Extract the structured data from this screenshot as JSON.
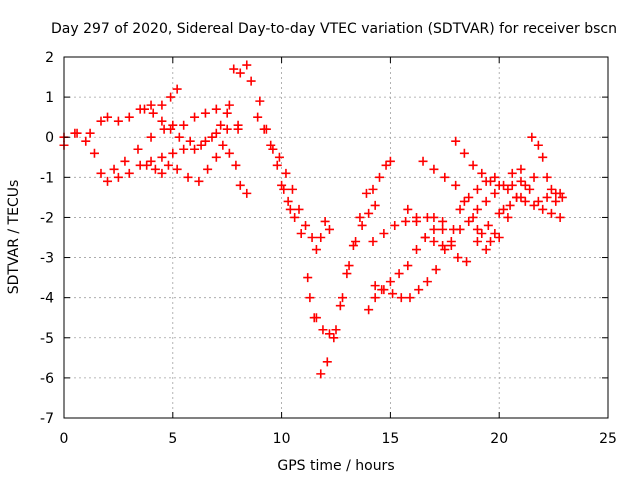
{
  "chart_data": {
    "type": "scatter",
    "title": "Day 297 of 2020, Sidereal Day-to-day VTEC variation (SDTVAR) for receiver bscn",
    "xlabel": "GPS time / hours",
    "ylabel": "SDTVAR / TECUs",
    "xlim": [
      0,
      25
    ],
    "ylim": [
      -7,
      2
    ],
    "xticks": [
      0,
      5,
      10,
      15,
      20,
      25
    ],
    "yticks": [
      -7,
      -6,
      -5,
      -4,
      -3,
      -2,
      -1,
      0,
      1,
      2
    ],
    "grid": true,
    "marker": "plus",
    "color": "#ff0000",
    "series": [
      {
        "x": [
          0.0,
          0.6,
          1.2,
          1.7,
          2.0,
          2.5,
          3.0,
          3.5,
          4.0,
          4.5,
          4.9,
          5.2
        ],
        "y": [
          -0.2,
          0.1,
          0.1,
          0.4,
          0.5,
          0.4,
          0.5,
          0.7,
          0.8,
          0.8,
          1.0,
          1.2
        ]
      },
      {
        "x": [
          0.0,
          0.5,
          1.0,
          1.4,
          1.7,
          2.0,
          2.3,
          2.8,
          3.4,
          4.0,
          4.6,
          5.0,
          5.5,
          6.0,
          6.5,
          7.0,
          7.5,
          8.0
        ],
        "y": [
          0.0,
          0.1,
          -0.1,
          -0.4,
          -0.9,
          -1.1,
          -0.8,
          -0.6,
          -0.3,
          0.0,
          0.2,
          0.3,
          0.3,
          0.5,
          0.6,
          0.7,
          0.6,
          0.2
        ]
      },
      {
        "x": [
          2.5,
          3.0,
          3.5,
          4.0,
          4.5,
          5.0,
          5.5,
          6.0,
          6.5,
          7.0,
          7.5,
          8.0
        ],
        "y": [
          -1.0,
          -0.9,
          -0.7,
          -0.6,
          -0.5,
          -0.4,
          -0.3,
          -0.3,
          -0.1,
          0.1,
          0.2,
          0.3
        ]
      },
      {
        "x": [
          3.8,
          4.2,
          4.5,
          4.8,
          5.2,
          5.7,
          6.2,
          6.6,
          7.0,
          7.3,
          7.6,
          7.9,
          8.1,
          8.4
        ],
        "y": [
          -0.7,
          -0.8,
          -0.9,
          -0.7,
          -0.8,
          -1.0,
          -1.1,
          -0.8,
          -0.5,
          -0.2,
          -0.4,
          -0.7,
          -1.2,
          -1.4
        ]
      },
      {
        "x": [
          3.7,
          4.1,
          4.5,
          4.9,
          5.3,
          5.8,
          6.3,
          6.8,
          7.2,
          7.6
        ],
        "y": [
          0.7,
          0.6,
          0.4,
          0.2,
          0.0,
          -0.1,
          -0.2,
          0.0,
          0.3,
          0.8
        ]
      },
      {
        "x": [
          7.8,
          8.1,
          8.4,
          8.6,
          8.9,
          9.2,
          9.5,
          9.8,
          10.1,
          10.4
        ],
        "y": [
          1.7,
          1.6,
          1.8,
          1.4,
          0.5,
          0.2,
          -0.2,
          -0.7,
          -1.3,
          -1.8
        ]
      },
      {
        "x": [
          9.0,
          9.3,
          9.6,
          9.9,
          10.2,
          10.5,
          10.8,
          11.1,
          11.4,
          11.6,
          11.8,
          12.0,
          12.2
        ],
        "y": [
          0.9,
          0.2,
          -0.3,
          -0.5,
          -0.9,
          -1.3,
          -1.8,
          -2.2,
          -2.5,
          -2.8,
          -2.5,
          -2.1,
          -2.3
        ]
      },
      {
        "x": [
          10.0,
          10.3,
          10.6,
          10.9,
          11.2,
          11.5,
          11.8,
          12.1,
          12.4,
          12.7,
          13.0,
          13.3,
          13.6,
          13.9,
          14.2,
          14.5,
          14.8,
          15.0
        ],
        "y": [
          -1.2,
          -1.6,
          -2.0,
          -2.4,
          -3.5,
          -4.5,
          -5.9,
          -5.6,
          -5.0,
          -4.2,
          -3.4,
          -2.7,
          -2.0,
          -1.4,
          -1.3,
          -1.0,
          -0.7,
          -0.6
        ]
      },
      {
        "x": [
          11.3,
          11.6,
          11.9,
          12.2,
          12.5,
          12.8,
          13.1,
          13.4,
          13.7,
          14.0,
          14.3
        ],
        "y": [
          -4.0,
          -4.5,
          -4.8,
          -4.9,
          -4.8,
          -4.0,
          -3.2,
          -2.6,
          -2.2,
          -1.9,
          -1.7
        ]
      },
      {
        "x": [
          14.0,
          14.3,
          14.6,
          15.0,
          15.4,
          15.8,
          16.2,
          16.6,
          17.0,
          17.4
        ],
        "y": [
          -4.3,
          -4.0,
          -3.8,
          -3.6,
          -3.4,
          -3.2,
          -2.8,
          -2.5,
          -2.3,
          -2.1
        ]
      },
      {
        "x": [
          14.3,
          14.7,
          15.1,
          15.5,
          15.9,
          16.3,
          16.7,
          17.1,
          17.5,
          17.9,
          18.2,
          18.6,
          19.0,
          19.4,
          19.8
        ],
        "y": [
          -3.7,
          -3.8,
          -3.9,
          -4.0,
          -4.0,
          -3.8,
          -3.6,
          -3.3,
          -2.8,
          -2.3,
          -1.8,
          -1.5,
          -1.3,
          -1.1,
          -1.0
        ]
      },
      {
        "x": [
          14.2,
          14.7,
          15.2,
          15.7,
          16.2,
          16.7,
          17.0,
          17.4,
          17.8,
          18.1,
          18.5,
          19.0,
          19.5,
          20.0,
          20.5,
          21.0
        ],
        "y": [
          -2.6,
          -2.4,
          -2.2,
          -2.1,
          -2.0,
          -2.0,
          -2.0,
          -2.3,
          -2.7,
          -3.0,
          -3.1,
          -2.6,
          -2.2,
          -1.9,
          -1.7,
          -1.5
        ]
      },
      {
        "x": [
          15.8,
          16.2,
          16.6,
          17.0,
          17.4,
          17.8,
          18.2,
          18.6,
          19.0,
          19.4,
          19.8,
          20.2,
          20.6,
          21.0
        ],
        "y": [
          -1.8,
          -2.1,
          -2.5,
          -2.6,
          -2.7,
          -2.6,
          -2.3,
          -2.1,
          -2.3,
          -2.8,
          -2.4,
          -1.8,
          -1.2,
          -0.8
        ]
      },
      {
        "x": [
          16.5,
          17.0,
          17.5,
          18.0,
          18.4,
          18.8,
          19.2,
          19.6,
          20.0,
          20.4,
          20.8,
          21.2,
          21.6
        ],
        "y": [
          -0.6,
          -0.8,
          -1.0,
          -1.2,
          -1.6,
          -2.0,
          -2.4,
          -2.6,
          -2.5,
          -2.0,
          -1.5,
          -1.2,
          -1.0
        ]
      },
      {
        "x": [
          18.0,
          18.4,
          18.8,
          19.2,
          19.6,
          20.0,
          20.4,
          20.8,
          21.2,
          21.6,
          22.0,
          22.4,
          22.8
        ],
        "y": [
          -0.1,
          -0.4,
          -0.7,
          -0.9,
          -1.1,
          -1.2,
          -1.3,
          -1.5,
          -1.6,
          -1.7,
          -1.8,
          -1.9,
          -2.0
        ]
      },
      {
        "x": [
          19.0,
          19.4,
          19.8,
          20.2,
          20.6,
          21.0,
          21.4,
          21.8,
          22.2,
          22.6,
          22.9
        ],
        "y": [
          -1.8,
          -1.6,
          -1.4,
          -1.2,
          -0.9,
          -1.1,
          -1.3,
          -1.6,
          -1.5,
          -1.4,
          -1.5
        ]
      },
      {
        "x": [
          21.5,
          21.8,
          22.0,
          22.2,
          22.4,
          22.6,
          22.8
        ],
        "y": [
          0.0,
          -0.2,
          -0.5,
          -1.0,
          -1.3,
          -1.6,
          -1.4
        ]
      }
    ]
  }
}
